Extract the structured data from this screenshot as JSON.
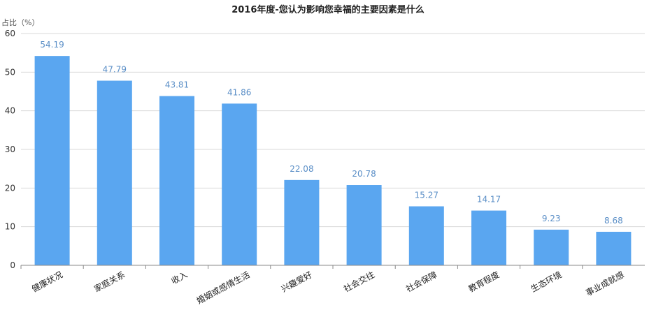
{
  "chart_data": {
    "type": "bar",
    "title": "2016年度-您认为影响您幸福的主要因素是什么",
    "ylabel": "占比（%）",
    "xlabel": "",
    "categories": [
      "健康状况",
      "家庭关系",
      "收入",
      "婚姻或感情生活",
      "兴趣爱好",
      "社会交往",
      "社会保障",
      "教育程度",
      "生态环境",
      "事业成就感"
    ],
    "values": [
      54.19,
      47.79,
      43.81,
      41.86,
      22.08,
      20.78,
      15.27,
      14.17,
      9.23,
      8.68
    ],
    "value_labels": [
      "54.19",
      "47.79",
      "43.81",
      "41.86",
      "22.08",
      "20.78",
      "15.27",
      "14.17",
      "9.23",
      "8.68"
    ],
    "y_ticks": [
      0,
      10,
      20,
      30,
      40,
      50,
      60
    ],
    "ylim": [
      0,
      60
    ],
    "grid": true,
    "legend": "none",
    "colors": {
      "bar": "#5aa6f0",
      "data_label": "#5b8fc7"
    }
  }
}
